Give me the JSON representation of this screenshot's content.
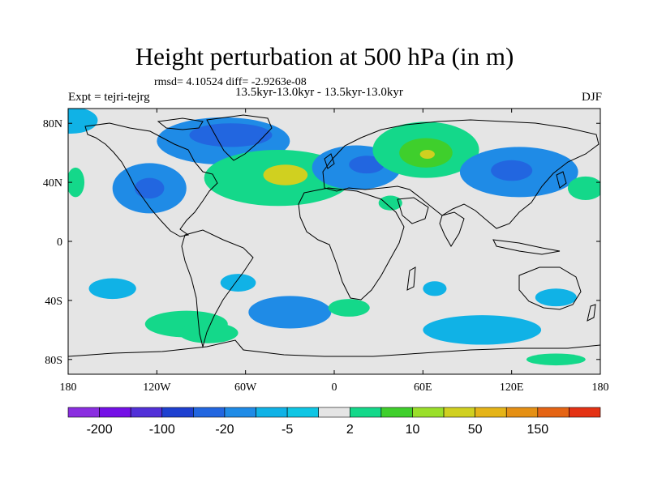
{
  "figure": {
    "title": "Height perturbation at 500 hPa (in m)",
    "stats": "rmsd= 4.10524 diff= -2.9263e-08",
    "period": "13.5kyr-13.0kyr - 13.5kyr-13.0kyr",
    "experiment": "Expt = tejri-tejrg",
    "season": "DJF"
  },
  "map_axes": {
    "lon_range": [
      -180,
      180
    ],
    "lat_range": [
      -90,
      90
    ],
    "lon_ticks": [
      {
        "value": -180,
        "label": "180"
      },
      {
        "value": -120,
        "label": "120W"
      },
      {
        "value": -60,
        "label": "60W"
      },
      {
        "value": 0,
        "label": "0"
      },
      {
        "value": 60,
        "label": "60E"
      },
      {
        "value": 120,
        "label": "120E"
      },
      {
        "value": 180,
        "label": "180"
      }
    ],
    "lat_ticks": [
      {
        "value": 80,
        "label": "80N"
      },
      {
        "value": 40,
        "label": "40N"
      },
      {
        "value": 0,
        "label": "0"
      },
      {
        "value": -40,
        "label": "40S"
      },
      {
        "value": -80,
        "label": "80S"
      }
    ]
  },
  "colorbar": {
    "colors": [
      "#8a2ee0",
      "#7410e6",
      "#5230d8",
      "#1e40d0",
      "#2266e0",
      "#1f8be6",
      "#10b2e6",
      "#0fc6e4",
      "#e5e5e5",
      "#14d88a",
      "#3fcf2c",
      "#9adf2a",
      "#d0d020",
      "#e5b418",
      "#e59014",
      "#e56414",
      "#e43214"
    ],
    "labels": [
      {
        "after_box": 1,
        "text": "-200"
      },
      {
        "after_box": 3,
        "text": "-100"
      },
      {
        "after_box": 5,
        "text": "-20"
      },
      {
        "after_box": 7,
        "text": "-5"
      },
      {
        "after_box": 9,
        "text": "2"
      },
      {
        "after_box": 11,
        "text": "10"
      },
      {
        "after_box": 13,
        "text": "50"
      },
      {
        "after_box": 15,
        "text": "150"
      }
    ]
  },
  "field_regions": [
    {
      "name": "north-pacific-band",
      "level": "cyan",
      "lon": -178,
      "lat": 82,
      "rx": 18,
      "ry": 9
    },
    {
      "name": "north-pacific-green",
      "level": "green",
      "lon": -175,
      "lat": 40,
      "rx": 6,
      "ry": 10
    },
    {
      "name": "greenland-arctic-low",
      "level": "mid-blue",
      "lon": -75,
      "lat": 68,
      "rx": 45,
      "ry": 16
    },
    {
      "name": "greenland-arctic-core",
      "level": "blue",
      "lon": -70,
      "lat": 72,
      "rx": 28,
      "ry": 8
    },
    {
      "name": "north-america-low",
      "level": "mid-blue",
      "lon": -125,
      "lat": 36,
      "rx": 25,
      "ry": 17
    },
    {
      "name": "north-america-core",
      "level": "blue",
      "lon": -125,
      "lat": 36,
      "rx": 10,
      "ry": 7
    },
    {
      "name": "north-atlantic-high",
      "level": "green",
      "lon": -38,
      "lat": 43,
      "rx": 50,
      "ry": 19
    },
    {
      "name": "north-atlantic-core",
      "level": "yellow",
      "lon": -33,
      "lat": 45,
      "rx": 15,
      "ry": 7
    },
    {
      "name": "europe-low",
      "level": "mid-blue",
      "lon": 15,
      "lat": 50,
      "rx": 30,
      "ry": 15
    },
    {
      "name": "europe-core",
      "level": "blue",
      "lon": 22,
      "lat": 52,
      "rx": 12,
      "ry": 6
    },
    {
      "name": "siberia-high",
      "level": "green",
      "lon": 62,
      "lat": 62,
      "rx": 36,
      "ry": 19
    },
    {
      "name": "siberia-mid",
      "level": "lime",
      "lon": 62,
      "lat": 60,
      "rx": 18,
      "ry": 10
    },
    {
      "name": "siberia-core",
      "level": "yellow",
      "lon": 63,
      "lat": 59,
      "rx": 5,
      "ry": 3
    },
    {
      "name": "east-asia-low",
      "level": "mid-blue",
      "lon": 125,
      "lat": 47,
      "rx": 40,
      "ry": 17
    },
    {
      "name": "east-asia-core",
      "level": "blue",
      "lon": 120,
      "lat": 48,
      "rx": 14,
      "ry": 7
    },
    {
      "name": "pacific-green",
      "level": "green",
      "lon": 170,
      "lat": 36,
      "rx": 12,
      "ry": 8
    },
    {
      "name": "arabia-green",
      "level": "green",
      "lon": 38,
      "lat": 26,
      "rx": 8,
      "ry": 5
    },
    {
      "name": "south-pacific-low",
      "level": "cyan",
      "lon": -150,
      "lat": -32,
      "rx": 16,
      "ry": 7
    },
    {
      "name": "south-america-low",
      "level": "cyan",
      "lon": -65,
      "lat": -28,
      "rx": 12,
      "ry": 6
    },
    {
      "name": "south-atlantic-low",
      "level": "mid-blue",
      "lon": -30,
      "lat": -48,
      "rx": 28,
      "ry": 11
    },
    {
      "name": "south-indian-green",
      "level": "green",
      "lon": 10,
      "lat": -45,
      "rx": 14,
      "ry": 6
    },
    {
      "name": "southern-green",
      "level": "green",
      "lon": -100,
      "lat": -56,
      "rx": 28,
      "ry": 9
    },
    {
      "name": "southern-green-2",
      "level": "green",
      "lon": -85,
      "lat": -62,
      "rx": 20,
      "ry": 7
    },
    {
      "name": "indian-ocean-low",
      "level": "cyan",
      "lon": 100,
      "lat": -60,
      "rx": 40,
      "ry": 10
    },
    {
      "name": "indian-ocean-low-2",
      "level": "cyan",
      "lon": 68,
      "lat": -32,
      "rx": 8,
      "ry": 5
    },
    {
      "name": "australia-low",
      "level": "cyan",
      "lon": 150,
      "lat": -38,
      "rx": 14,
      "ry": 6
    },
    {
      "name": "antarctic-green",
      "level": "green",
      "lon": 150,
      "lat": -80,
      "rx": 20,
      "ry": 4
    }
  ],
  "level_colors": {
    "blue": "#2266e0",
    "mid-blue": "#1f8be6",
    "cyan": "#10b2e6",
    "green": "#14d88a",
    "lime": "#3fcf2c",
    "yellow": "#d0d020",
    "neutral": "#e5e5e5"
  }
}
